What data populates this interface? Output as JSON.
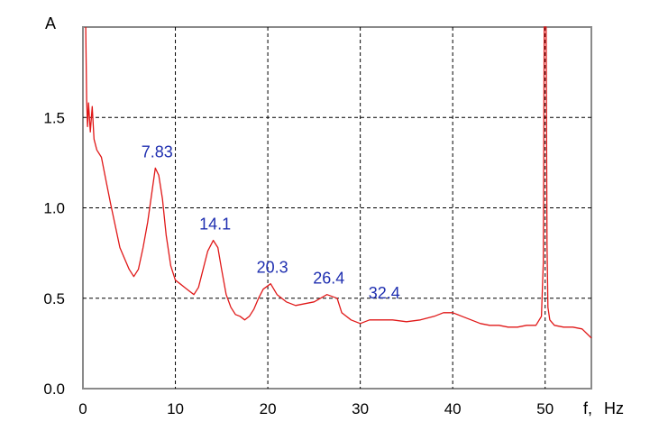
{
  "chart_data": {
    "type": "line",
    "title": "",
    "xlabel": "f,",
    "xunit": "Hz",
    "ylabel": "A",
    "xlim": [
      0,
      55
    ],
    "ylim": [
      0,
      2.0
    ],
    "xticks": [
      0,
      10,
      20,
      30,
      40,
      50
    ],
    "yticks": [
      0.0,
      0.5,
      1.0,
      1.5
    ],
    "ytick_labels": [
      "0.0",
      "0.5",
      "1.0",
      "1.5"
    ],
    "grid": true,
    "colors": {
      "series": "#e01818",
      "annotation": "#1f2fb0",
      "frame": "#8a8a8a"
    },
    "annotations": [
      {
        "text": "7.83",
        "x": 7.83,
        "y": 1.22
      },
      {
        "text": "14.1",
        "x": 14.1,
        "y": 0.82
      },
      {
        "text": "20.3",
        "x": 20.3,
        "y": 0.58
      },
      {
        "text": "26.4",
        "x": 26.4,
        "y": 0.52
      },
      {
        "text": "32.4",
        "x": 32.4,
        "y": 0.44
      }
    ],
    "series": [
      {
        "x": [
          0.3,
          0.4,
          0.5,
          0.6,
          0.8,
          1.0,
          1.2,
          1.5,
          2.0,
          2.5,
          3.0,
          3.5,
          4.0,
          4.5,
          5.0,
          5.5,
          6.0,
          6.5,
          7.0,
          7.5,
          7.83,
          8.2,
          8.6,
          9.0,
          9.5,
          10.0,
          10.5,
          11.0,
          11.5,
          12.0,
          12.5,
          13.0,
          13.5,
          14.1,
          14.6,
          15.0,
          15.5,
          16.0,
          16.5,
          17.0,
          17.5,
          18.0,
          18.5,
          19.0,
          19.5,
          20.3,
          21.0,
          21.5,
          22.0,
          23.0,
          24.0,
          25.0,
          26.4,
          27.5,
          28.0,
          29.0,
          30.0,
          31.0,
          32.4,
          33.5,
          35.0,
          36.5,
          38.0,
          39.0,
          40.0,
          41.0,
          42.0,
          43.0,
          44.0,
          45.0,
          46.0,
          47.0,
          48.0,
          49.0,
          49.6,
          49.8,
          49.9,
          50.0,
          50.1,
          50.2,
          50.3,
          50.5,
          51.0,
          52.0,
          53.0,
          54.0,
          55.0
        ],
        "y": [
          2.0,
          1.6,
          1.45,
          1.58,
          1.42,
          1.56,
          1.38,
          1.32,
          1.28,
          1.15,
          1.02,
          0.9,
          0.78,
          0.72,
          0.66,
          0.62,
          0.66,
          0.78,
          0.92,
          1.1,
          1.22,
          1.18,
          1.05,
          0.85,
          0.68,
          0.6,
          0.58,
          0.56,
          0.54,
          0.52,
          0.56,
          0.66,
          0.76,
          0.82,
          0.78,
          0.66,
          0.52,
          0.45,
          0.41,
          0.4,
          0.38,
          0.4,
          0.44,
          0.5,
          0.55,
          0.58,
          0.52,
          0.5,
          0.48,
          0.46,
          0.47,
          0.48,
          0.52,
          0.5,
          0.42,
          0.38,
          0.36,
          0.38,
          0.38,
          0.38,
          0.37,
          0.38,
          0.4,
          0.42,
          0.42,
          0.4,
          0.38,
          0.36,
          0.35,
          0.35,
          0.34,
          0.34,
          0.35,
          0.35,
          0.4,
          0.7,
          2.0,
          2.0,
          2.0,
          0.8,
          0.45,
          0.38,
          0.35,
          0.34,
          0.34,
          0.33,
          0.28
        ]
      }
    ]
  }
}
